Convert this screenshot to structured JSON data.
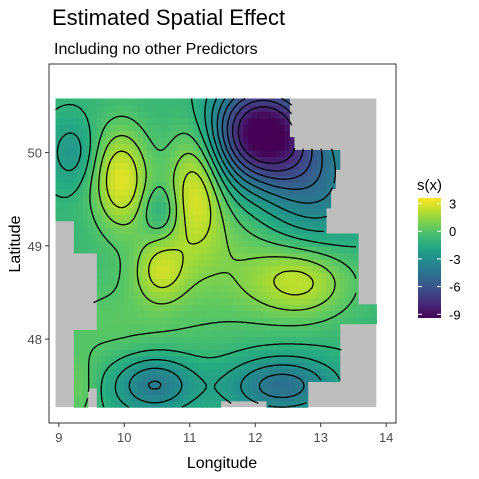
{
  "chart_data": {
    "type": "heatmap",
    "title": "Estimated Spatial Effect",
    "subtitle": "Including no other Predictors",
    "xlabel": "Longitude",
    "ylabel": "Latitude",
    "xlim": [
      8.85,
      14.15
    ],
    "ylim": [
      47.1,
      50.95
    ],
    "x_ticks": [
      9,
      10,
      11,
      12,
      13,
      14
    ],
    "y_ticks": [
      48,
      49,
      50
    ],
    "x_tick_labels": [
      "9",
      "10",
      "11",
      "12",
      "13",
      "14"
    ],
    "y_tick_labels": [
      "48",
      "49",
      "50"
    ],
    "legend": {
      "title": "s(x)",
      "position": "right",
      "breaks": [
        3,
        0,
        -3,
        -6,
        -9
      ],
      "break_labels": [
        "3",
        "0",
        "-3",
        "-6",
        "-9"
      ],
      "range": [
        -9.4,
        3.6
      ],
      "palette": "viridis"
    },
    "colors": {
      "panel_fill": "#ffffff",
      "panel_border": "#333333",
      "missing_region": "#bebebe",
      "contour_line": "#000000",
      "viridis_low": "#440154",
      "viridis_mid": "#21908C",
      "viridis_high": "#FDE725"
    },
    "grid": false,
    "domain": {
      "xmin": 8.95,
      "xmax": 13.85,
      "ymin": 47.27,
      "ymax": 50.58
    },
    "effect_components": [
      {
        "feature": "base",
        "value": -0.8
      },
      {
        "x": 9.95,
        "y": 49.72,
        "amplitude": 3.8,
        "sx": 0.3,
        "sy": 0.38
      },
      {
        "x": 11.1,
        "y": 49.68,
        "amplitude": 3.4,
        "sx": 0.3,
        "sy": 0.5
      },
      {
        "x": 10.55,
        "y": 48.75,
        "amplitude": 2.6,
        "sx": 0.28,
        "sy": 0.25
      },
      {
        "x": 12.7,
        "y": 48.62,
        "amplitude": 3.0,
        "sx": 0.55,
        "sy": 0.28
      },
      {
        "x": 11.55,
        "y": 48.95,
        "amplitude": 1.4,
        "sx": 0.7,
        "sy": 0.55
      },
      {
        "x": 9.85,
        "y": 48.15,
        "amplitude": 1.0,
        "sx": 0.9,
        "sy": 0.4
      },
      {
        "x": 9.3,
        "y": 47.45,
        "amplitude": 1.2,
        "sx": 0.2,
        "sy": 0.25
      },
      {
        "x": 12.1,
        "y": 50.22,
        "amplitude": -9.0,
        "sx": 0.55,
        "sy": 0.38
      },
      {
        "x": 12.9,
        "y": 49.65,
        "amplitude": -3.2,
        "sx": 0.6,
        "sy": 0.45
      },
      {
        "x": 10.45,
        "y": 47.52,
        "amplitude": -3.5,
        "sx": 0.45,
        "sy": 0.22
      },
      {
        "x": 12.4,
        "y": 47.5,
        "amplitude": -3.8,
        "sx": 0.6,
        "sy": 0.22
      },
      {
        "x": 9.2,
        "y": 50.0,
        "amplitude": -1.8,
        "sx": 0.25,
        "sy": 0.25
      },
      {
        "x": 10.55,
        "y": 49.38,
        "amplitude": -1.4,
        "sx": 0.18,
        "sy": 0.18
      }
    ],
    "contour_levels": [
      -8,
      -7,
      -6,
      -5,
      -4,
      -3,
      -2,
      -1,
      0,
      1,
      2
    ]
  }
}
